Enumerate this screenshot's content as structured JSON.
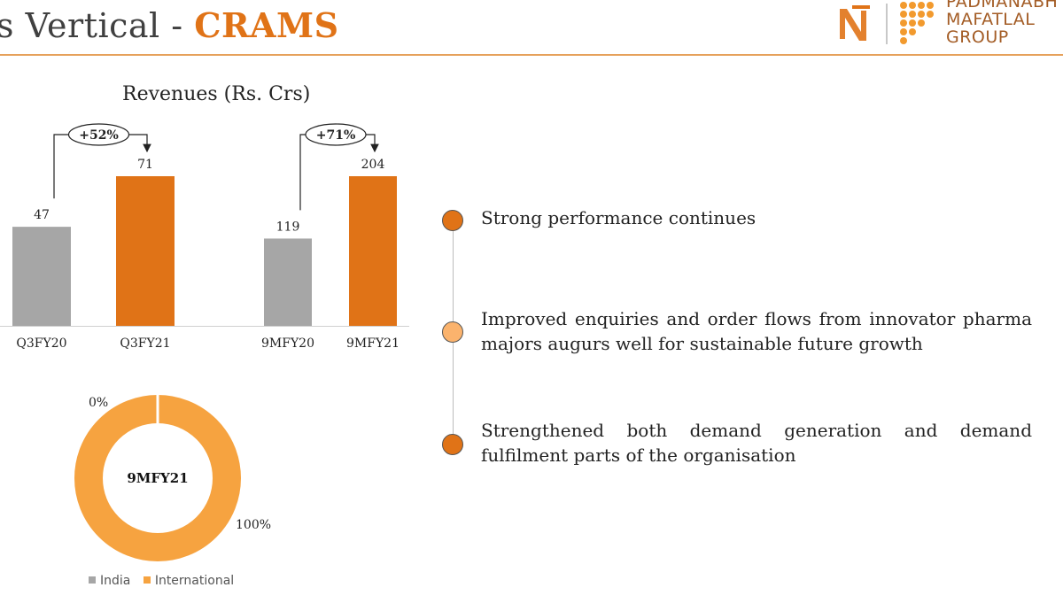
{
  "header": {
    "title_prefix": "s Vertical - ",
    "title_accent": "CRAMS",
    "logo": {
      "line1": "PADMANABH",
      "line2": "MAFATLAL",
      "line3": "GROUP"
    }
  },
  "colors": {
    "accent": "#e07317",
    "grey": "#a6a6a6",
    "light_orange": "#f6a340",
    "bullet_pale": "#fbb36d"
  },
  "chart_data": [
    {
      "type": "bar",
      "title": "Revenues  (Rs. Crs)",
      "categories": [
        "Q3FY20",
        "Q3FY21"
      ],
      "values": [
        47,
        71
      ],
      "colors": [
        "#a6a6a6",
        "#e07317"
      ],
      "growth_label": "+52%",
      "ylim": [
        0,
        80
      ]
    },
    {
      "type": "bar",
      "title": "Revenues  (Rs. Crs)",
      "categories": [
        "9MFY20",
        "9MFY21"
      ],
      "values": [
        119,
        204
      ],
      "colors": [
        "#a6a6a6",
        "#e07317"
      ],
      "growth_label": "+71%",
      "ylim": [
        0,
        230
      ]
    },
    {
      "type": "pie",
      "center_label": "9MFY21",
      "labels": [
        "India",
        "International"
      ],
      "values": [
        0,
        100
      ],
      "value_labels": [
        "0%",
        "100%"
      ],
      "colors": [
        "#a6a6a6",
        "#f6a340"
      ]
    }
  ],
  "bullets": [
    {
      "text": "Strong performance continues",
      "color": "#e07317"
    },
    {
      "text": "Improved enquiries and order flows from innovator pharma majors augurs well for sustainable future growth",
      "color": "#fbb36d"
    },
    {
      "text": "Strengthened both demand generation and demand fulfilment parts of the organisation",
      "color": "#e07317"
    }
  ]
}
